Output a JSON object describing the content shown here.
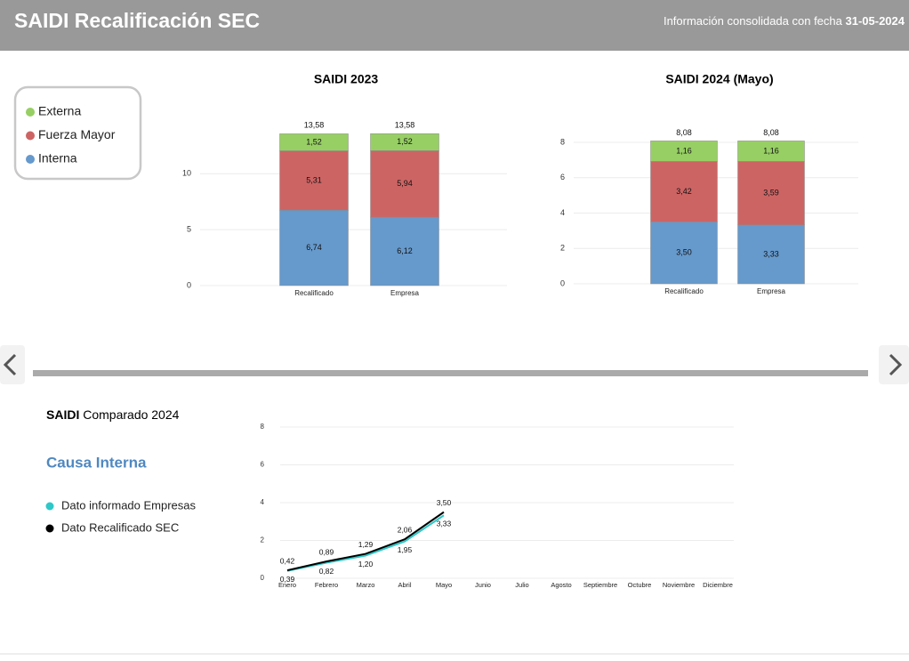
{
  "header": {
    "title": "SAIDI Recalificación SEC",
    "info": "Información consolidada con fecha",
    "date": "31-05-2024"
  },
  "chart_data": [
    {
      "type": "stacked-bar",
      "title": "SAIDI 2023",
      "categories": [
        "Recalificado",
        "Empresa"
      ],
      "series": [
        {
          "name": "Interna",
          "color": "#6699cc",
          "values": [
            6.74,
            6.12
          ],
          "value_labels": [
            "6,74",
            "6,12"
          ]
        },
        {
          "name": "Fuerza Mayor",
          "color": "#cd6464",
          "values": [
            5.31,
            5.94
          ],
          "value_labels": [
            "5,31",
            "5,94"
          ]
        },
        {
          "name": "Externa",
          "color": "#97cf64",
          "values": [
            1.52,
            1.52
          ],
          "value_labels": [
            "1,52",
            "1,52"
          ]
        }
      ],
      "totals": [
        13.58,
        13.58
      ],
      "total_labels": [
        "13,58",
        "13,58"
      ],
      "ylim": [
        0,
        14
      ],
      "yticks": [
        0,
        5,
        10
      ],
      "grid": true
    },
    {
      "type": "stacked-bar",
      "title": "SAIDI 2024 (Mayo)",
      "categories": [
        "Recalificado",
        "Empresa"
      ],
      "series": [
        {
          "name": "Interna",
          "color": "#6699cc",
          "values": [
            3.5,
            3.33
          ],
          "value_labels": [
            "3,50",
            "3,33"
          ]
        },
        {
          "name": "Fuerza Mayor",
          "color": "#cd6464",
          "values": [
            3.42,
            3.59
          ],
          "value_labels": [
            "3,42",
            "3,59"
          ]
        },
        {
          "name": "Externa",
          "color": "#97cf64",
          "values": [
            1.16,
            1.16
          ],
          "value_labels": [
            "1,16",
            "1,16"
          ]
        }
      ],
      "totals": [
        8.08,
        8.08
      ],
      "total_labels": [
        "8,08",
        "8,08"
      ],
      "ylim": [
        0,
        8.2
      ],
      "yticks": [
        0,
        2,
        4,
        6,
        8
      ],
      "grid": true
    },
    {
      "type": "line",
      "title_bold": "SAIDI",
      "title": "Comparado 2024",
      "subtitle": "Causa Interna",
      "categories": [
        "Enero",
        "Febrero",
        "Marzo",
        "Abril",
        "Mayo",
        "Junio",
        "Julio",
        "Agosto",
        "Septiembre",
        "Octubre",
        "Noviembre",
        "Diciembre"
      ],
      "series": [
        {
          "name": "Dato informado Empresas",
          "color": "#2ec8c8",
          "values": [
            0.39,
            0.82,
            1.2,
            1.95,
            3.33,
            null,
            null,
            null,
            null,
            null,
            null,
            null
          ],
          "value_labels": [
            "0,39",
            "0,82",
            "1,20",
            "1,95",
            "3,33",
            null,
            null,
            null,
            null,
            null,
            null,
            null
          ]
        },
        {
          "name": "Dato Recalificado SEC",
          "color": "#000000",
          "values": [
            0.42,
            0.89,
            1.29,
            2.06,
            3.5,
            null,
            null,
            null,
            null,
            null,
            null,
            null
          ],
          "value_labels": [
            "0,42",
            "0,89",
            "1,29",
            "2,06",
            "3,50",
            null,
            null,
            null,
            null,
            null,
            null,
            null
          ]
        }
      ],
      "ylim": [
        0,
        8
      ],
      "yticks": [
        0,
        2,
        4,
        6,
        8
      ],
      "grid": true
    }
  ]
}
